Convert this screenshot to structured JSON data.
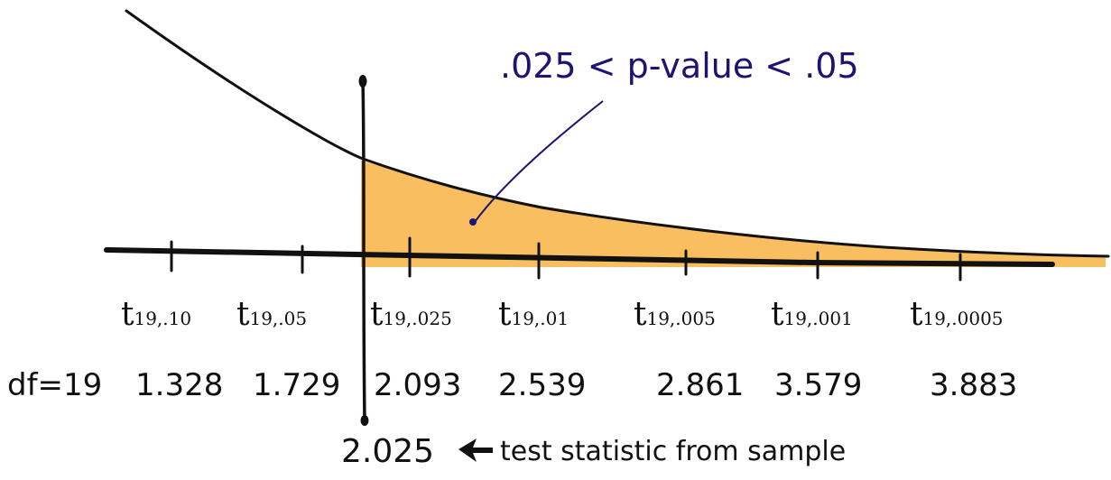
{
  "annotation": {
    "text": ".025 < p-value < .05",
    "color": "#1c1470"
  },
  "critical_values": {
    "row_label": "df=19",
    "items": [
      {
        "label_main": "t",
        "label_sub": "19,.10",
        "value": "1.328"
      },
      {
        "label_main": "t",
        "label_sub": "19,.05",
        "value": "1.729"
      },
      {
        "label_main": "t",
        "label_sub": "19,.025",
        "value": "2.093"
      },
      {
        "label_main": "t",
        "label_sub": "19,.01",
        "value": "2.539"
      },
      {
        "label_main": "t",
        "label_sub": "19,.005",
        "value": "2.861"
      },
      {
        "label_main": "t",
        "label_sub": "19,.001",
        "value": "3.579"
      },
      {
        "label_main": "t",
        "label_sub": "19,.0005",
        "value": "3.883"
      }
    ]
  },
  "test_statistic": {
    "value": "2.025",
    "caption": "test statistic from sample"
  },
  "colors": {
    "shade": "#f7b54a",
    "ink": "#111111"
  }
}
